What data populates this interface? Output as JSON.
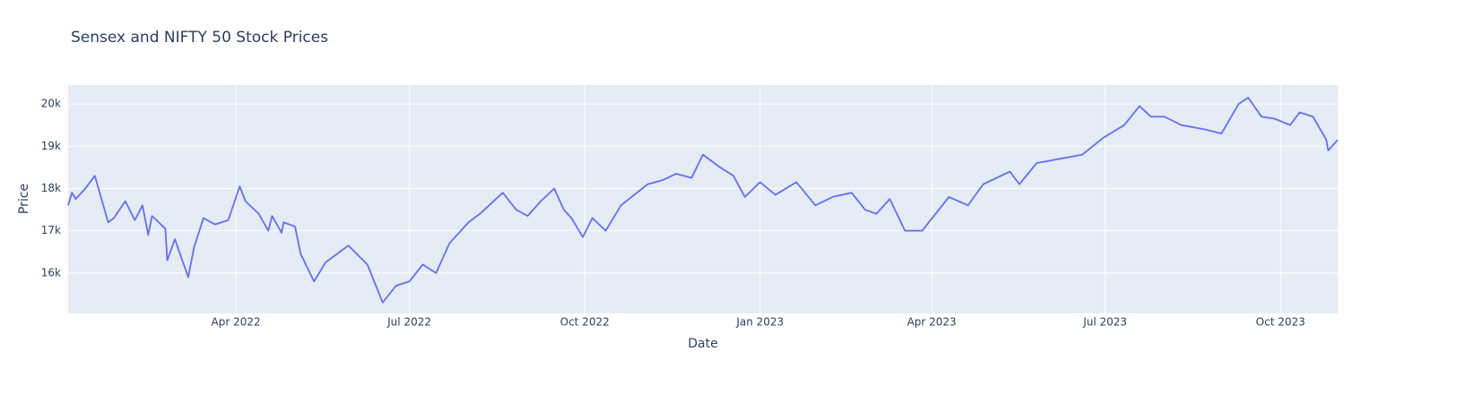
{
  "chart_data": {
    "type": "line",
    "title": "Sensex and NIFTY 50 Stock Prices",
    "x_label": "Date",
    "y_label": "Price",
    "color": "#636efa",
    "grid": true,
    "x": [
      "2022-01-03",
      "2022-01-05",
      "2022-01-07",
      "2022-01-12",
      "2022-01-17",
      "2022-01-24",
      "2022-01-27",
      "2022-02-02",
      "2022-02-07",
      "2022-02-11",
      "2022-02-14",
      "2022-02-16",
      "2022-02-23",
      "2022-02-24",
      "2022-02-28",
      "2022-03-07",
      "2022-03-10",
      "2022-03-15",
      "2022-03-21",
      "2022-03-28",
      "2022-04-03",
      "2022-04-06",
      "2022-04-13",
      "2022-04-18",
      "2022-04-20",
      "2022-04-25",
      "2022-04-26",
      "2022-05-02",
      "2022-05-05",
      "2022-05-12",
      "2022-05-18",
      "2022-05-30",
      "2022-06-09",
      "2022-06-17",
      "2022-06-24",
      "2022-07-01",
      "2022-07-08",
      "2022-07-15",
      "2022-07-22",
      "2022-08-01",
      "2022-08-07",
      "2022-08-19",
      "2022-08-26",
      "2022-09-01",
      "2022-09-08",
      "2022-09-15",
      "2022-09-20",
      "2022-09-24",
      "2022-09-30",
      "2022-10-05",
      "2022-10-12",
      "2022-10-20",
      "2022-11-03",
      "2022-11-11",
      "2022-11-18",
      "2022-11-26",
      "2022-12-02",
      "2022-12-11",
      "2022-12-18",
      "2022-12-24",
      "2023-01-01",
      "2023-01-09",
      "2023-01-20",
      "2023-01-30",
      "2023-02-08",
      "2023-02-18",
      "2023-02-25",
      "2023-03-03",
      "2023-03-10",
      "2023-03-18",
      "2023-03-27",
      "2023-04-03",
      "2023-04-10",
      "2023-04-20",
      "2023-04-28",
      "2023-05-12",
      "2023-05-17",
      "2023-05-26",
      "2023-06-07",
      "2023-06-19",
      "2023-06-30",
      "2023-07-11",
      "2023-07-19",
      "2023-07-25",
      "2023-08-01",
      "2023-08-10",
      "2023-08-22",
      "2023-08-31",
      "2023-09-09",
      "2023-09-14",
      "2023-09-21",
      "2023-09-28",
      "2023-10-06",
      "2023-10-11",
      "2023-10-18",
      "2023-10-25",
      "2023-10-26",
      "2023-10-31"
    ],
    "values": [
      17600,
      17900,
      17750,
      18000,
      18300,
      17200,
      17300,
      17700,
      17250,
      17600,
      16900,
      17350,
      17050,
      16300,
      16800,
      15900,
      16600,
      17300,
      17150,
      17250,
      18050,
      17700,
      17400,
      17000,
      17350,
      16950,
      17200,
      17100,
      16450,
      15800,
      16250,
      16650,
      16200,
      15300,
      15700,
      15800,
      16200,
      16000,
      16700,
      17200,
      17400,
      17900,
      17500,
      17350,
      17700,
      18000,
      17500,
      17300,
      16850,
      17300,
      17000,
      17600,
      18100,
      18200,
      18350,
      18250,
      18800,
      18500,
      18300,
      17800,
      18150,
      17850,
      18150,
      17600,
      17800,
      17900,
      17500,
      17400,
      17750,
      17000,
      17000,
      17400,
      17800,
      17600,
      18100,
      18400,
      18100,
      18600,
      18700,
      18800,
      19200,
      19500,
      19950,
      19700,
      19700,
      19500,
      19400,
      19300,
      20000,
      20150,
      19700,
      19650,
      19500,
      19800,
      19700,
      19150,
      18900,
      19150
    ],
    "xlim": [
      "2022-01-03",
      "2023-10-31"
    ],
    "xticks": [
      {
        "value": "2022-04-01",
        "label": "Apr 2022"
      },
      {
        "value": "2022-07-01",
        "label": "Jul 2022"
      },
      {
        "value": "2022-10-01",
        "label": "Oct 2022"
      },
      {
        "value": "2023-01-01",
        "label": "Jan 2023"
      },
      {
        "value": "2023-04-01",
        "label": "Apr 2023"
      },
      {
        "value": "2023-07-01",
        "label": "Jul 2023"
      },
      {
        "value": "2023-10-01",
        "label": "Oct 2023"
      }
    ],
    "ylim": [
      15043,
      20447
    ],
    "yticks": [
      {
        "value": 16000,
        "label": "16k"
      },
      {
        "value": 17000,
        "label": "17k"
      },
      {
        "value": 18000,
        "label": "18k"
      },
      {
        "value": 19000,
        "label": "19k"
      },
      {
        "value": 20000,
        "label": "20k"
      }
    ]
  }
}
